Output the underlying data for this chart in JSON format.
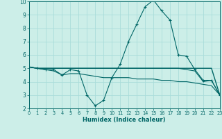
{
  "xlabel": "Humidex (Indice chaleur)",
  "x": [
    0,
    1,
    2,
    3,
    4,
    5,
    6,
    7,
    8,
    9,
    10,
    11,
    12,
    13,
    14,
    15,
    16,
    17,
    18,
    19,
    20,
    21,
    22,
    23
  ],
  "line1": [
    5.1,
    5.0,
    4.9,
    4.9,
    4.5,
    4.9,
    4.8,
    3.0,
    2.2,
    2.6,
    4.3,
    5.3,
    7.0,
    8.3,
    9.6,
    10.1,
    9.3,
    8.6,
    6.0,
    5.9,
    4.9,
    4.1,
    4.1,
    3.0
  ],
  "line2": [
    5.1,
    5.0,
    5.0,
    5.0,
    5.0,
    5.0,
    5.0,
    5.0,
    5.0,
    5.0,
    5.0,
    5.0,
    5.0,
    5.0,
    5.0,
    5.0,
    5.0,
    5.0,
    5.0,
    5.0,
    5.0,
    5.0,
    5.0,
    3.0
  ],
  "line3": [
    5.1,
    5.0,
    4.9,
    4.8,
    4.5,
    4.6,
    4.6,
    4.5,
    4.4,
    4.3,
    4.3,
    4.3,
    4.3,
    4.2,
    4.2,
    4.2,
    4.1,
    4.1,
    4.0,
    4.0,
    3.9,
    3.8,
    3.7,
    3.0
  ],
  "line4": [
    5.1,
    5.0,
    5.0,
    5.0,
    5.0,
    5.0,
    5.0,
    5.0,
    5.0,
    5.0,
    5.0,
    5.0,
    5.0,
    5.0,
    5.0,
    5.0,
    5.0,
    5.0,
    5.0,
    4.9,
    4.8,
    4.0,
    4.1,
    3.0
  ],
  "bg_color": "#cceee8",
  "grid_color": "#aaddda",
  "line_color": "#006666",
  "xlim": [
    0,
    23
  ],
  "ylim": [
    2,
    10
  ],
  "yticks": [
    2,
    3,
    4,
    5,
    6,
    7,
    8,
    9,
    10
  ],
  "xticks": [
    0,
    1,
    2,
    3,
    4,
    5,
    6,
    7,
    8,
    9,
    10,
    11,
    12,
    13,
    14,
    15,
    16,
    17,
    18,
    19,
    20,
    21,
    22,
    23
  ]
}
